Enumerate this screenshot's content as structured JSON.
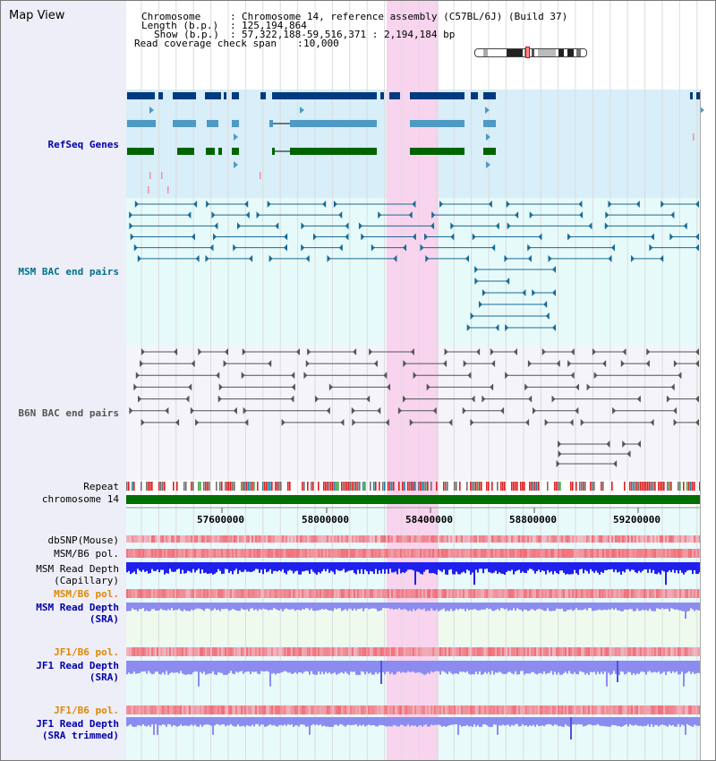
{
  "page": {
    "title": "Map View"
  },
  "info": {
    "chromosome_label": "Chromosome",
    "chromosome_value": "Chromosome 14, reference assembly (C57BL/6J) (Build 37)",
    "length_label": "Length (b.p.)",
    "length_value": "125,194,864",
    "show_label": "Show (b.p.)",
    "show_value": "57,322,188-59,516,371 : 2,194,184 bp",
    "span_label": "Read coverage check span",
    "span_value": "10,000"
  },
  "tracks": {
    "refseq": "RefSeq Genes",
    "msm_bac": "MSM BAC end pairs",
    "b6n_bac": "B6N BAC end pairs",
    "repeat": "Repeat",
    "chromosome": "chromosome 14",
    "dbsnp": "dbSNP(Mouse)",
    "msm_b6_pol_1": "MSM/B6 pol.",
    "msm_depth_cap_1": "MSM Read Depth",
    "msm_depth_cap_2": "(Capillary)",
    "msm_b6_pol_2": "MSM/B6 pol.",
    "msm_depth_sra_1": "MSM Read Depth",
    "msm_depth_sra_2": "(SRA)",
    "jf1_b6_pol_1": "JF1/B6 pol.",
    "jf1_depth_sra_1": "JF1 Read Depth",
    "jf1_depth_sra_2": "(SRA)",
    "jf1_b6_pol_2": "JF1/B6 pol.",
    "jf1_depth_trim_1": "JF1 Read Depth",
    "jf1_depth_trim_2": "(SRA trimmed)"
  },
  "axis": {
    "ticks": [
      "57600000",
      "58000000",
      "58400000",
      "58800000",
      "59200000"
    ]
  },
  "colors": {
    "refseq_bg": "#d8eef8",
    "bac_bg": "#e6fafa",
    "b6n_bg": "#f4f4fa",
    "highlight": "#f8d4ee",
    "gene_dark": "#003a80",
    "gene_mid": "#4d9ac4",
    "gene_green": "#006400",
    "msm_pair": "#1a6a96",
    "b6n_pair": "#555555",
    "chromosome_bar": "#007000",
    "depth_blue": "#2020ee",
    "depth_light": "#8c8cf0",
    "label_blue": "#0000aa",
    "label_orange": "#e08800",
    "label_teal": "#00708a"
  }
}
